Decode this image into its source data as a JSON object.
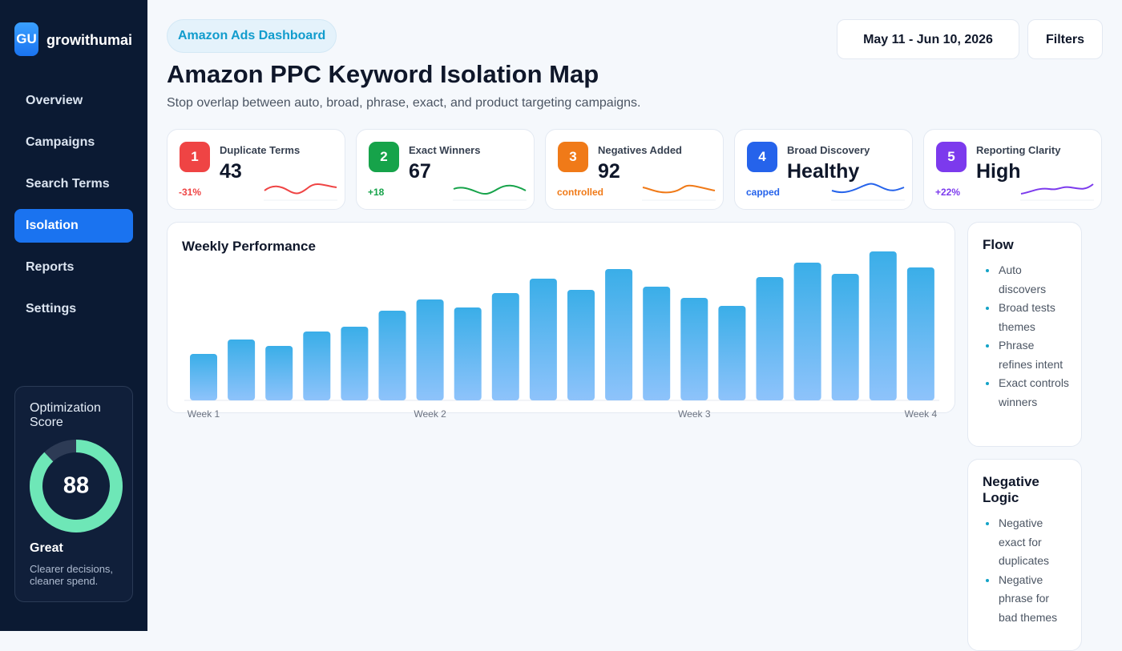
{
  "sidebar": {
    "logo": "GU",
    "brand": "growithumai",
    "nav": [
      "Overview",
      "Campaigns",
      "Search Terms",
      "Isolation",
      "Reports",
      "Settings"
    ],
    "active_nav": 3
  },
  "score_card": {
    "label": "Optimization Score",
    "score": 88,
    "rating": "Great",
    "note": "Clearer decisions, cleaner spend.",
    "color": "#6ee7b7"
  },
  "header": {
    "badge": "Amazon Ads Dashboard",
    "title": "Amazon PPC Keyword Isolation Map",
    "subtitle": "Stop overlap between auto, broad, phrase, exact, and product targeting campaigns.",
    "date_range": "May 11 - Jun 10, 2026",
    "filters": "Filters"
  },
  "kpis": [
    {
      "number": 1,
      "label": "Duplicate Terms",
      "value": 43,
      "delta": "-31%",
      "color": "#ef4444"
    },
    {
      "number": 2,
      "label": "Exact Winners",
      "value": 67,
      "delta": "+18",
      "color": "#16a34a"
    },
    {
      "number": 3,
      "label": "Negatives Added",
      "value": 92,
      "delta": "controlled",
      "color": "#f07a18"
    },
    {
      "number": 4,
      "label": "Broad Discovery",
      "value": "Healthy",
      "delta": "capped",
      "color": "#2563eb"
    },
    {
      "number": 5,
      "label": "Reporting Clarity",
      "value": "High",
      "delta": "+22%",
      "color": "#7c3aed"
    }
  ],
  "chart_data": {
    "type": "bar",
    "title": "Weekly Performance",
    "categories": [
      "Week 1",
      null,
      null,
      null,
      null,
      null,
      "Week 2",
      null,
      null,
      null,
      null,
      null,
      null,
      "Week 3",
      null,
      null,
      null,
      null,
      null,
      "Week 4"
    ],
    "values": [
      58,
      76,
      68,
      86,
      92,
      112,
      126,
      116,
      134,
      152,
      138,
      164,
      142,
      128,
      118,
      154,
      172,
      158,
      186,
      166
    ],
    "ylim": [
      0,
      200
    ],
    "color": "#3aaee8"
  },
  "panels": [
    {
      "title": "Flow",
      "items": [
        "Auto discovers",
        "Broad tests themes",
        "Phrase refines intent",
        "Exact controls winners"
      ]
    },
    {
      "title": "Negative Logic",
      "items": [
        "Negative exact for duplicates",
        "Negative phrase for bad themes"
      ]
    }
  ]
}
